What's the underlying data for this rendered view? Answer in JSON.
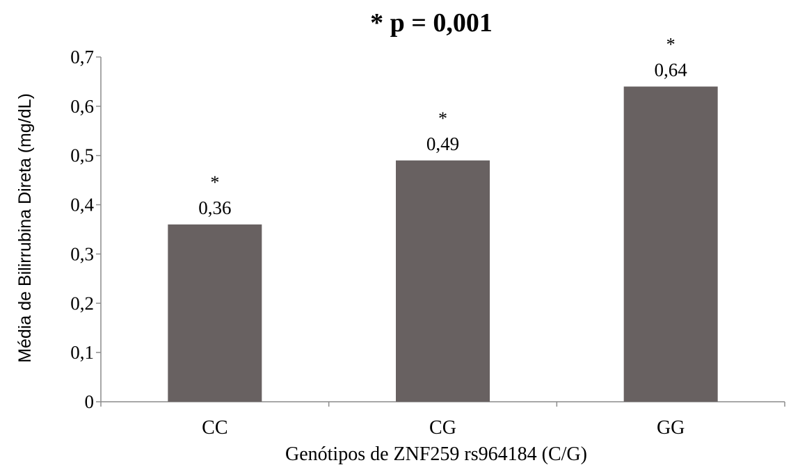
{
  "chart_data": {
    "type": "bar",
    "title": "* p = 0,001",
    "xlabel": "Genótipos de ZNF259 rs964184 (C/G)",
    "ylabel": "Média de Bilirrubina Direta (mg/dL)",
    "categories": [
      "CC",
      "CG",
      "GG"
    ],
    "values": [
      0.36,
      0.49,
      0.64
    ],
    "value_labels": [
      "0,36",
      "0,49",
      "0,64"
    ],
    "significance_markers": [
      "*",
      "*",
      "*"
    ],
    "ylim": [
      0,
      0.7
    ],
    "yticks": [
      0,
      0.1,
      0.2,
      0.3,
      0.4,
      0.5,
      0.6,
      0.7
    ],
    "ytick_labels": [
      "0",
      "0,1",
      "0,2",
      "0,3",
      "0,4",
      "0,5",
      "0,6",
      "0,7"
    ],
    "bar_color": "#686161",
    "grid": false,
    "legend": "none"
  }
}
